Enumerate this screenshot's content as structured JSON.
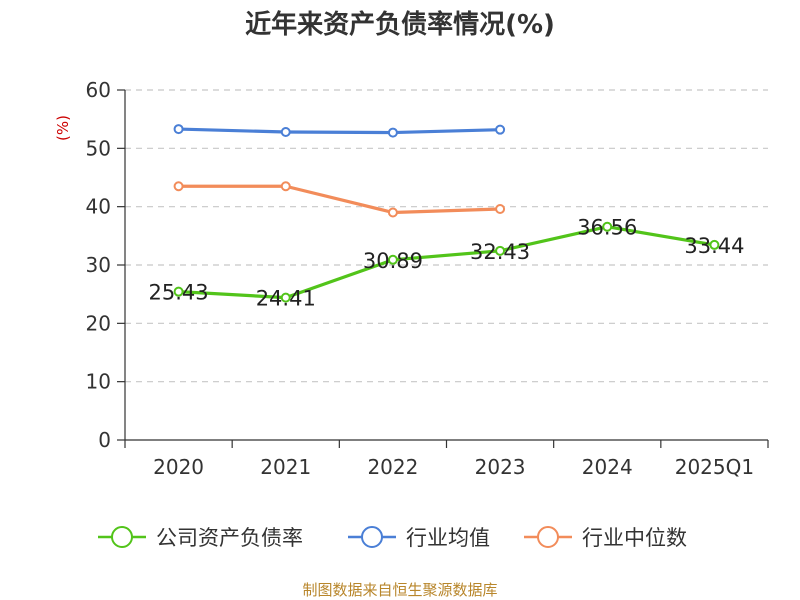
{
  "chart_data": {
    "type": "line",
    "title": "近年来资产负债率情况(%)",
    "ylabel": "(%)",
    "xlabel": "",
    "categories": [
      "2020",
      "2021",
      "2022",
      "2023",
      "2024",
      "2025Q1"
    ],
    "ylim": [
      0,
      60
    ],
    "yticks": [
      0,
      10,
      20,
      30,
      40,
      50,
      60
    ],
    "grid": true,
    "legend_position": "bottom",
    "series": [
      {
        "name": "公司资产负债率",
        "color": "#52c41a",
        "values": [
          25.43,
          24.41,
          30.89,
          32.43,
          36.56,
          33.44
        ],
        "labels": [
          "25.43",
          "24.41",
          "30.89",
          "32.43",
          "36.56",
          "33.44"
        ],
        "show_labels": true
      },
      {
        "name": "行业均值",
        "color": "#4a7fd6",
        "values": [
          53.3,
          52.8,
          52.7,
          53.2,
          null,
          null
        ],
        "show_labels": false
      },
      {
        "name": "行业中位数",
        "color": "#f28c5a",
        "values": [
          43.5,
          43.5,
          39.0,
          39.6,
          null,
          null
        ],
        "show_labels": false
      }
    ],
    "source": "制图数据来自恒生聚源数据库"
  }
}
